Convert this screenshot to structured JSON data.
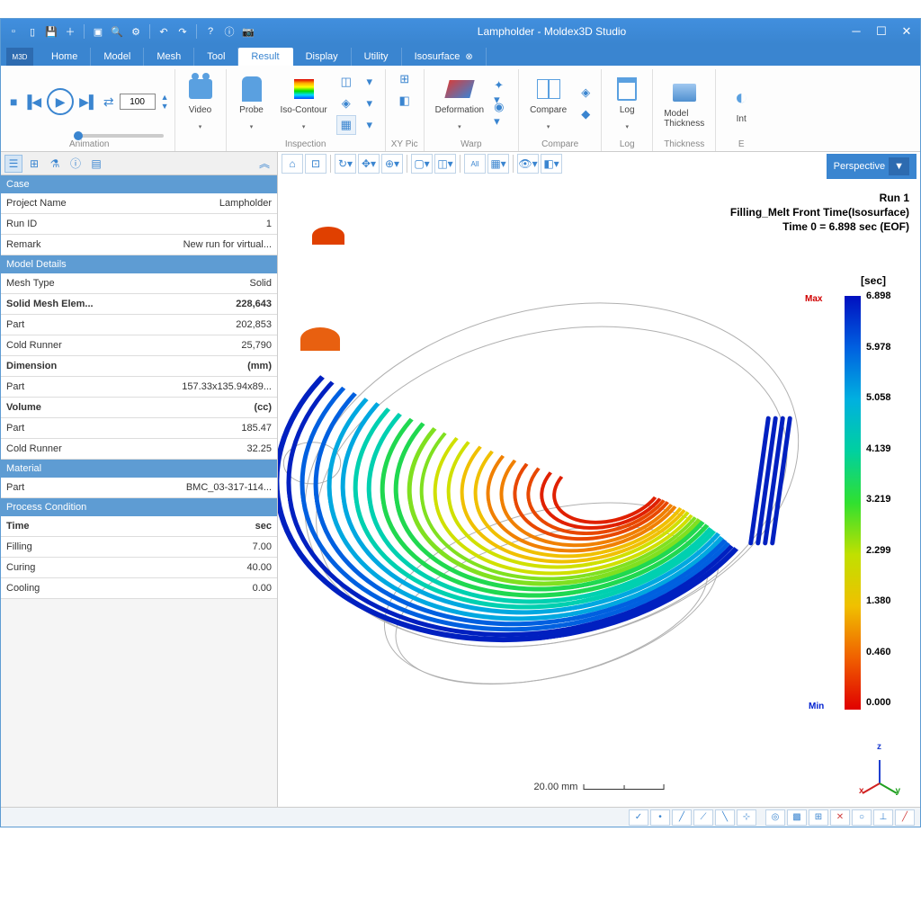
{
  "window": {
    "title": "Lampholder - Moldex3D Studio"
  },
  "tabs": {
    "home": "Home",
    "model": "Model",
    "mesh": "Mesh",
    "tool": "Tool",
    "result": "Result",
    "display": "Display",
    "utility": "Utility",
    "isosurface": "Isosurface"
  },
  "ribbon": {
    "frame": "100",
    "animation": "Animation",
    "video": "Video",
    "inspection": "Inspection",
    "probe": "Probe",
    "isocontour": "Iso-Contour",
    "xypic": "XY Pic",
    "warp": "Warp",
    "deformation": "Deformation",
    "compare_group": "Compare",
    "compare": "Compare",
    "log_group": "Log",
    "log": "Log",
    "thickness_group": "Thickness",
    "model_thickness": "Model\nThickness",
    "int": "Int",
    "e": "E"
  },
  "viewport": {
    "perspective": "Perspective",
    "info_run": "Run 1",
    "info_result": "Filling_Melt Front Time(Isosurface)",
    "info_time": "Time 0 = 6.898 sec (EOF)",
    "scale_label": "20.00 mm",
    "axis_x": "x",
    "axis_y": "y",
    "axis_z": "z",
    "axis_colors": {
      "x": "#d02020",
      "y": "#20a020",
      "z": "#2040d0"
    }
  },
  "colorbar": {
    "unit": "[sec]",
    "max_label": "Max",
    "min_label": "Min",
    "ticks": [
      "6.898",
      "5.978",
      "5.058",
      "4.139",
      "3.219",
      "2.299",
      "1.380",
      "0.460",
      "0.000"
    ],
    "gradient_colors": [
      "#0010c0",
      "#0060e0",
      "#00b0e0",
      "#00d0a0",
      "#30e030",
      "#c0e000",
      "#f0c000",
      "#f06000",
      "#e00000"
    ]
  },
  "properties": {
    "sections": [
      {
        "header": "Case",
        "rows": [
          {
            "key": "Project Name",
            "val": "Lampholder"
          },
          {
            "key": "Run ID",
            "val": "1"
          },
          {
            "key": "Remark",
            "val": "New run for virtual..."
          }
        ]
      },
      {
        "header": "Model Details",
        "rows": [
          {
            "key": "Mesh Type",
            "val": "Solid"
          },
          {
            "key": "Solid Mesh Elem...",
            "val": "228,643",
            "bold": true
          },
          {
            "key": "Part",
            "val": "202,853"
          },
          {
            "key": "Cold Runner",
            "val": "25,790"
          },
          {
            "key": "Dimension",
            "val": "(mm)",
            "bold": true
          },
          {
            "key": "Part",
            "val": "157.33x135.94x89..."
          },
          {
            "key": "Volume",
            "val": "(cc)",
            "bold": true
          },
          {
            "key": "Part",
            "val": "185.47"
          },
          {
            "key": "Cold Runner",
            "val": "32.25"
          }
        ]
      },
      {
        "header": "Material",
        "rows": [
          {
            "key": "Part",
            "val": "BMC_03-317-114..."
          }
        ]
      },
      {
        "header": "Process Condition",
        "rows": [
          {
            "key": "Time",
            "val": "sec",
            "bold": true
          },
          {
            "key": "Filling",
            "val": "7.00"
          },
          {
            "key": "Curing",
            "val": "40.00"
          },
          {
            "key": "Cooling",
            "val": "0.00"
          }
        ]
      }
    ]
  },
  "simulation": {
    "outline_color": "#b0b0b0",
    "gate_colors": [
      "#e04000",
      "#e86010"
    ],
    "rib_colors": [
      "#0020c0",
      "#0060e0",
      "#00a8e0",
      "#00d0b0",
      "#20d850",
      "#80e020",
      "#d0e000",
      "#f0c000",
      "#f08000",
      "#e84800",
      "#e02000"
    ]
  }
}
